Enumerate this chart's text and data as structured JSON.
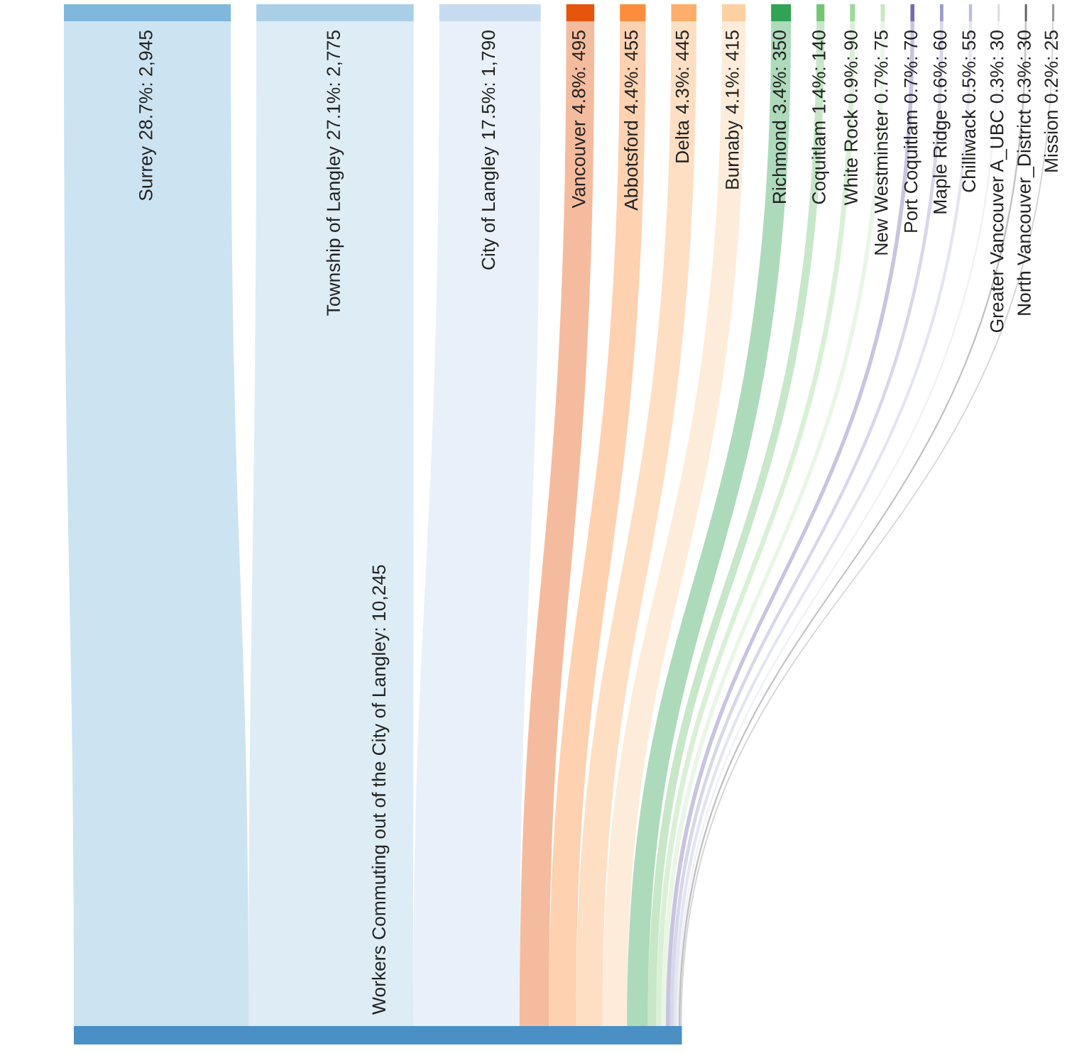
{
  "chart_data": {
    "type": "other",
    "categories": [
      "Surrey",
      "Township of Langley",
      "City of Langley",
      "Vancouver",
      "Abbotsford",
      "Delta",
      "Burnaby",
      "Richmond",
      "Coquitlam",
      "White Rock",
      "New Westminster",
      "Port Coquitlam",
      "Maple Ridge",
      "Chilliwack",
      "Greater Vancouver A_UBC",
      "North Vancouver_District",
      "Mission"
    ],
    "values": [
      2945,
      2775,
      1790,
      495,
      455,
      445,
      415,
      350,
      140,
      90,
      75,
      70,
      60,
      55,
      30,
      30,
      25
    ],
    "value_labels": [
      "28.7%: 2,945",
      "27.1%: 2,775",
      "17.5%: 1,790",
      "4.8%: 495",
      "4.4%: 455",
      "4.3%: 445",
      "4.1%: 415",
      "3.4%: 350",
      "1.4%: 140",
      "0.9%: 90",
      "0.7%: 75",
      "0.7%: 70",
      "0.6%: 60",
      "0.5%: 55",
      "0.3%: 30",
      "0.3%: 30",
      "0.2%: 25"
    ],
    "colors": [
      "#7fb8dc",
      "#a9cfe6",
      "#c6dbef",
      "#e6550d",
      "#fd8d3c",
      "#fdae6b",
      "#fdd0a2",
      "#31a354",
      "#74c476",
      "#a1d99b",
      "#c7e9c0",
      "#756bb1",
      "#9e9ac8",
      "#bcbddc",
      "#dadaeb",
      "#636363",
      "#969696"
    ],
    "color": "#4a90c4",
    "annotations": [
      "Workers Commuting out of the City of Langley: 10,245"
    ]
  }
}
